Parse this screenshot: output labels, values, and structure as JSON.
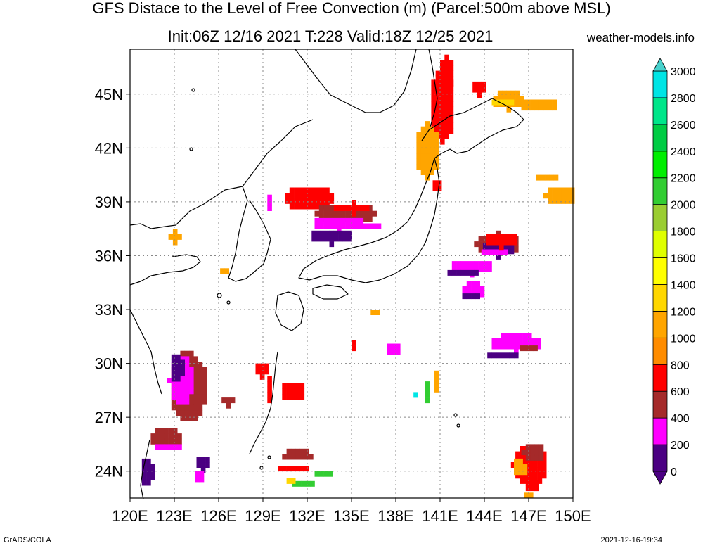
{
  "title_line1": "GFS Distace to the Level of Free Convection (m) (Parcel:500m above MSL)",
  "title_line2": "Init:06Z 12/16 2021 T:228 Valid:18Z 12/25 2021",
  "site": "weather-models.info",
  "footer_left": "GrADS/COLA",
  "footer_right": "2021-12-16-19:34",
  "map": {
    "lon_range": [
      120,
      150
    ],
    "lat_range": [
      22.5,
      47.5
    ],
    "lon_labels": [
      "120E",
      "123E",
      "126E",
      "129E",
      "132E",
      "135E",
      "138E",
      "141E",
      "144E",
      "147E",
      "150E"
    ],
    "lat_labels": [
      "24N",
      "27N",
      "30N",
      "33N",
      "36N",
      "39N",
      "42N",
      "45N"
    ],
    "grid": true
  },
  "colorbar": {
    "labels": [
      "0",
      "200",
      "400",
      "600",
      "800",
      "1000",
      "1200",
      "1400",
      "1600",
      "1800",
      "2000",
      "2200",
      "2400",
      "2600",
      "2800",
      "3000"
    ],
    "colors": [
      "#4b0082",
      "#ff00ff",
      "#a52a2a",
      "#ff0000",
      "#ff8c00",
      "#ffa500",
      "#ffd700",
      "#ffff00",
      "#dfff00",
      "#9acd32",
      "#32cd32",
      "#00ee00",
      "#00cc44",
      "#00e68a",
      "#00e5e5",
      "#48d1cc"
    ]
  },
  "shade_colors": {
    "purple": "#4b0082",
    "magenta": "#ff00ff",
    "brown": "#a52a2a",
    "red": "#ff0000",
    "orange": "#ffa500",
    "yellow": "#ffd700",
    "green": "#32cd32",
    "cyan": "#00e5e5"
  }
}
